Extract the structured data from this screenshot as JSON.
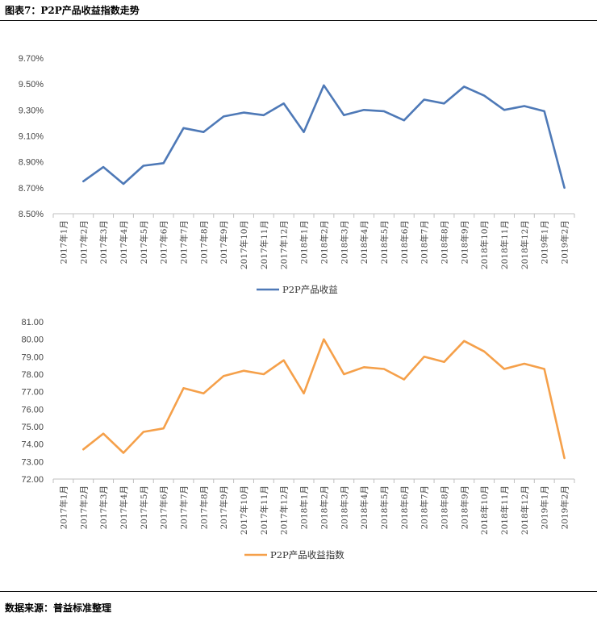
{
  "figure": {
    "title": "图表7：P2P产品收益指数走势",
    "source": "数据来源：普益标准整理"
  },
  "chart_data": [
    {
      "type": "line",
      "categories": [
        "2017年1月",
        "2017年2月",
        "2017年3月",
        "2017年4月",
        "2017年5月",
        "2017年6月",
        "2017年7月",
        "2017年8月",
        "2017年9月",
        "2017年10月",
        "2017年11月",
        "2017年12月",
        "2018年1月",
        "2018年2月",
        "2018年3月",
        "2018年4月",
        "2018年5月",
        "2018年6月",
        "2018年7月",
        "2018年8月",
        "2018年9月",
        "2018年10月",
        "2018年11月",
        "2018年12月",
        "2019年1月",
        "2019年2月"
      ],
      "series": [
        {
          "name": "P2P产品收益",
          "color": "#4e79b7",
          "values": [
            null,
            8.75,
            8.86,
            8.73,
            8.87,
            8.89,
            9.16,
            9.13,
            9.25,
            9.28,
            9.26,
            9.35,
            9.13,
            9.49,
            9.26,
            9.3,
            9.29,
            9.22,
            9.38,
            9.35,
            9.48,
            9.41,
            9.3,
            9.33,
            9.29,
            8.7
          ]
        }
      ],
      "yticks": [
        "8.50%",
        "8.70%",
        "8.90%",
        "9.10%",
        "9.30%",
        "9.50%",
        "9.70%"
      ],
      "ylim": [
        8.5,
        9.7
      ],
      "legend": "bottom-center",
      "grid": false
    },
    {
      "type": "line",
      "categories": [
        "2017年1月",
        "2017年2月",
        "2017年3月",
        "2017年4月",
        "2017年5月",
        "2017年6月",
        "2017年7月",
        "2017年8月",
        "2017年9月",
        "2017年10月",
        "2017年11月",
        "2017年12月",
        "2018年1月",
        "2018年2月",
        "2018年3月",
        "2018年4月",
        "2018年5月",
        "2018年6月",
        "2018年7月",
        "2018年8月",
        "2018年9月",
        "2018年10月",
        "2018年11月",
        "2018年12月",
        "2019年1月",
        "2019年2月"
      ],
      "series": [
        {
          "name": "P2P产品收益指数",
          "color": "#f5a04a",
          "values": [
            null,
            73.7,
            74.6,
            73.5,
            74.7,
            74.9,
            77.2,
            76.9,
            77.9,
            78.2,
            78.0,
            78.8,
            76.9,
            80.0,
            78.0,
            78.4,
            78.3,
            77.7,
            79.0,
            78.7,
            79.9,
            79.3,
            78.3,
            78.6,
            78.3,
            73.2
          ]
        }
      ],
      "yticks": [
        "72.00",
        "73.00",
        "74.00",
        "75.00",
        "76.00",
        "77.00",
        "78.00",
        "79.00",
        "80.00",
        "81.00"
      ],
      "ylim": [
        72.0,
        81.0
      ],
      "legend": "bottom-center",
      "grid": false
    }
  ]
}
